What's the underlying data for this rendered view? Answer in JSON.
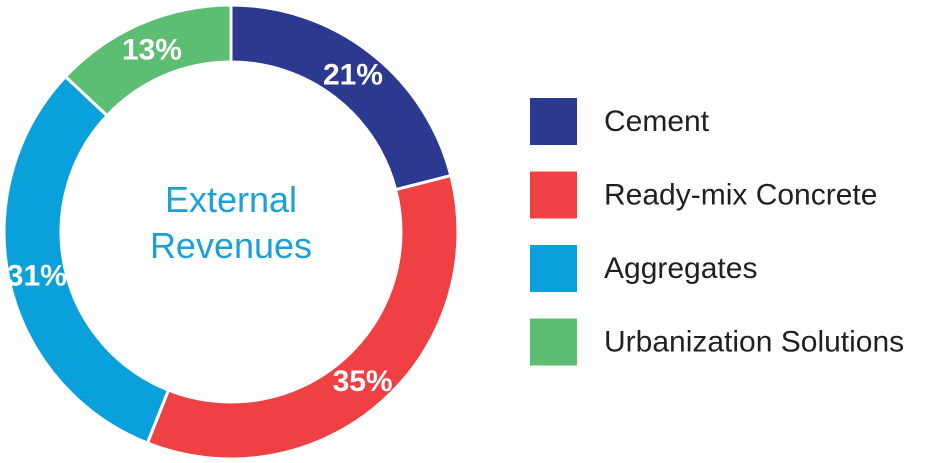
{
  "chart_data": {
    "type": "donut",
    "center_text": "External Revenues",
    "categories": [
      "Cement",
      "Ready-mix Concrete",
      "Aggregates",
      "Urbanization Solutions"
    ],
    "values": [
      21,
      35,
      31,
      13
    ],
    "value_labels": [
      "21%",
      "35%",
      "31%",
      "13%"
    ],
    "colors": [
      "#2b3990",
      "#ef4044",
      "#0aa0dc",
      "#5dbd72"
    ],
    "legend": "right"
  }
}
